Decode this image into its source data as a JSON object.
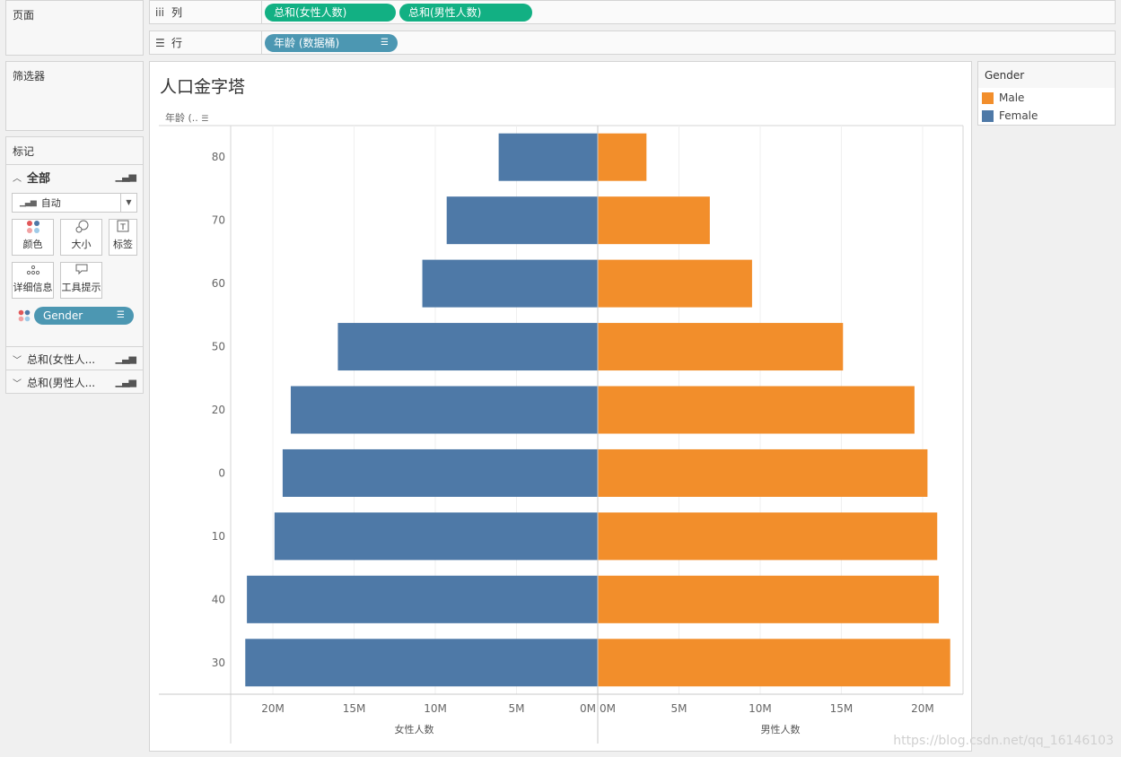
{
  "pages_panel": {
    "title": "页面"
  },
  "filters_panel": {
    "title": "筛选器"
  },
  "columns_shelf": {
    "label": "列",
    "pills": [
      "总和(女性人数)",
      "总和(男性人数)"
    ]
  },
  "rows_shelf": {
    "label": "行",
    "pills": [
      "年龄 (数据桶)"
    ]
  },
  "marks": {
    "title": "标记",
    "all_label": "全部",
    "mark_type": "自动",
    "buttons": {
      "color": "颜色",
      "size": "大小",
      "label": "标签",
      "detail": "详细信息",
      "tooltip": "工具提示"
    },
    "gender_pill": "Gender",
    "sections": [
      "总和(女性人...",
      "总和(男性人..."
    ]
  },
  "legend": {
    "title": "Gender",
    "items": [
      {
        "label": "Male",
        "color": "#f28e2b"
      },
      {
        "label": "Female",
        "color": "#4e79a7"
      }
    ]
  },
  "view": {
    "title": "人口金字塔",
    "row_header": "年龄 (.."
  },
  "watermark": "https://blog.csdn.net/qq_16146103",
  "chart_data": {
    "type": "bar",
    "orientation": "horizontal",
    "title": "人口金字塔",
    "categories": [
      "80",
      "70",
      "60",
      "50",
      "20",
      "0",
      "10",
      "40",
      "30"
    ],
    "series": [
      {
        "name": "女性人数",
        "gender": "Female",
        "color": "#4e79a7",
        "values": [
          6.1,
          9.3,
          10.8,
          16.0,
          18.9,
          19.4,
          19.9,
          21.6,
          21.7
        ]
      },
      {
        "name": "男性人数",
        "gender": "Male",
        "color": "#f28e2b",
        "values": [
          3.0,
          6.9,
          9.5,
          15.1,
          19.5,
          20.3,
          20.9,
          21.0,
          21.7
        ]
      }
    ],
    "units": "M",
    "left_axis": {
      "label": "女性人数",
      "ticks": [
        "20M",
        "15M",
        "10M",
        "5M",
        "0M"
      ],
      "range": [
        22.6,
        0
      ]
    },
    "right_axis": {
      "label": "男性人数",
      "ticks": [
        "0M",
        "5M",
        "10M",
        "15M",
        "20M"
      ],
      "range": [
        0,
        22.6
      ]
    },
    "grid": true
  }
}
